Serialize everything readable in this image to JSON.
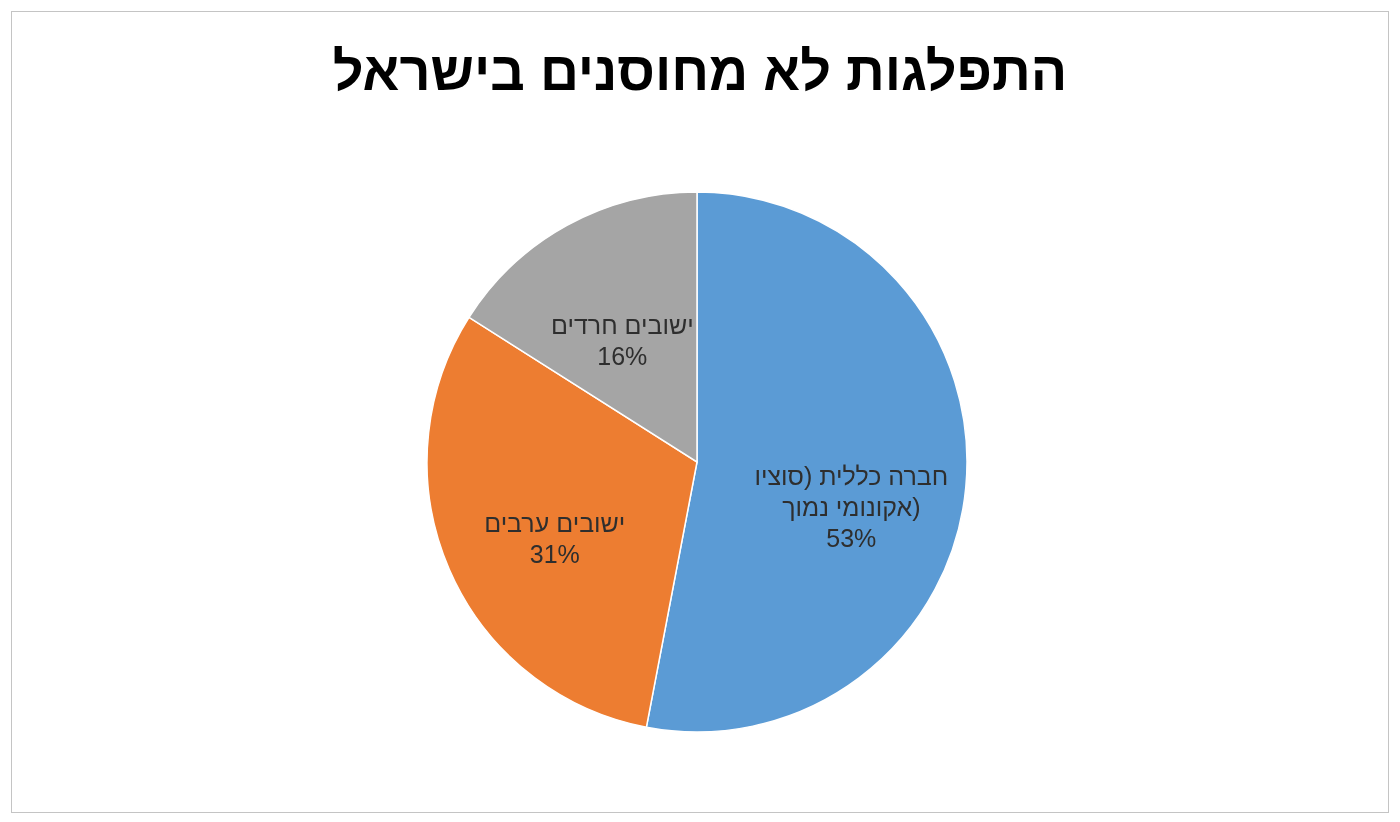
{
  "chart_data": {
    "type": "pie",
    "title": "התפלגות לא מחוסנים בישראל",
    "categories": [
      "חברה כללית (סוציו אקונומי נמוך)",
      "ישובים ערבים",
      "ישובים חרדים"
    ],
    "values": [
      53,
      31,
      16
    ],
    "value_labels": [
      "53%",
      "31%",
      "16%"
    ],
    "colors": [
      "#5b9bd5",
      "#ed7d31",
      "#a5a5a5"
    ]
  }
}
